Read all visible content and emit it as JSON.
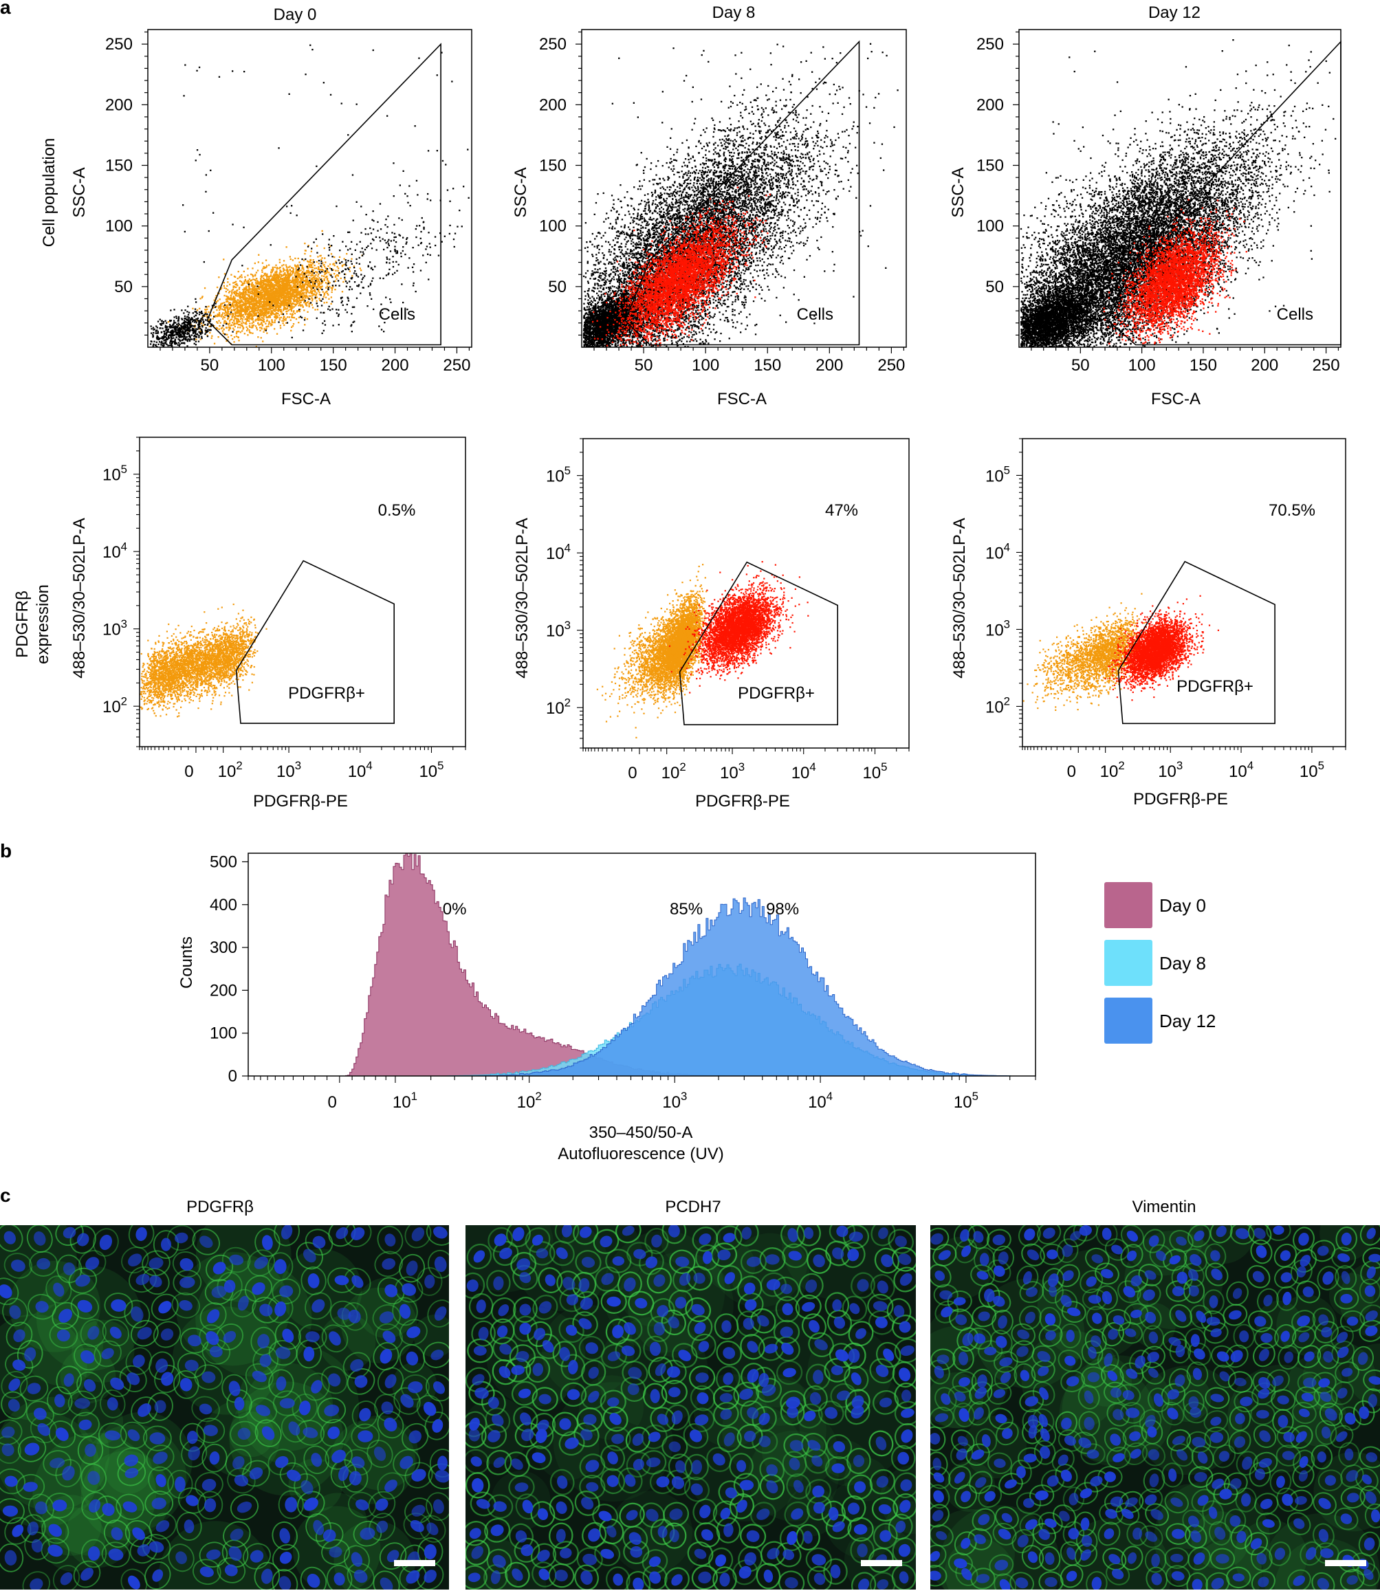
{
  "figure": {
    "panel_labels": [
      "a",
      "b",
      "c"
    ],
    "colors": {
      "black": "#000000",
      "orange": "#f39a0c",
      "red": "#ff1500",
      "day0": "#b9658d",
      "day8": "#6ee0fb",
      "day12": "#4a92ee",
      "micro_bg": "#0a1810",
      "nucleus": "#1f3fd8",
      "membrane": "#3fd04a"
    }
  },
  "chart_data": [
    {
      "id": "a-day0-scatter",
      "type": "scatter",
      "title": "Day 0",
      "xlabel": "FSC-A",
      "ylabel": "SSC-A",
      "row_label": "Cell population",
      "xlim": [
        0,
        262
      ],
      "ylim": [
        0,
        262
      ],
      "xticks": [
        50,
        100,
        150,
        200,
        250
      ],
      "yticks": [
        50,
        100,
        150,
        200,
        250
      ],
      "gate_label": "Cells",
      "gate": [
        [
          68,
          2
        ],
        [
          48,
          22
        ],
        [
          68,
          72
        ],
        [
          237,
          250
        ],
        [
          237,
          2
        ]
      ],
      "clusters": [
        {
          "color": "orange",
          "count": 3300,
          "cx": 100,
          "cy": 43,
          "sx": 22,
          "sy": 13,
          "rho": 0.55
        },
        {
          "color": "black",
          "count": 650,
          "cx": 25,
          "cy": 14,
          "sx": 13,
          "sy": 8,
          "rho": 0.5
        },
        {
          "color": "black",
          "count": 380,
          "cx": 175,
          "cy": 68,
          "sx": 35,
          "sy": 30,
          "rho": 0.6
        }
      ]
    },
    {
      "id": "a-day8-scatter",
      "type": "scatter",
      "title": "Day 8",
      "xlabel": "FSC-A",
      "ylabel": "SSC-A",
      "xlim": [
        0,
        262
      ],
      "ylim": [
        0,
        262
      ],
      "xticks": [
        50,
        100,
        150,
        200,
        250
      ],
      "yticks": [
        50,
        100,
        150,
        200,
        250
      ],
      "gate_label": "Cells",
      "gate": [
        [
          55,
          2
        ],
        [
          35,
          22
        ],
        [
          55,
          72
        ],
        [
          224,
          252
        ],
        [
          224,
          2
        ]
      ],
      "clusters": [
        {
          "color": "black",
          "count": 9500,
          "cx": 85,
          "cy": 78,
          "sx": 48,
          "sy": 52,
          "rho": 0.7
        },
        {
          "color": "black",
          "count": 2600,
          "cx": 20,
          "cy": 20,
          "sx": 14,
          "sy": 12,
          "rho": 0.5
        },
        {
          "color": "red",
          "count": 4300,
          "cx": 78,
          "cy": 56,
          "sx": 22,
          "sy": 22,
          "rho": 0.65
        }
      ]
    },
    {
      "id": "a-day12-scatter",
      "type": "scatter",
      "title": "Day 12",
      "xlabel": "FSC-A",
      "ylabel": "SSC-A",
      "xlim": [
        0,
        262
      ],
      "ylim": [
        0,
        262
      ],
      "xticks": [
        50,
        100,
        150,
        200,
        250
      ],
      "yticks": [
        50,
        100,
        150,
        200,
        250
      ],
      "gate_label": "Cells",
      "gate": [
        [
          95,
          2
        ],
        [
          72,
          22
        ],
        [
          95,
          72
        ],
        [
          262,
          252
        ],
        [
          262,
          2
        ]
      ],
      "clusters": [
        {
          "color": "black",
          "count": 12500,
          "cx": 88,
          "cy": 72,
          "sx": 52,
          "sy": 48,
          "rho": 0.7
        },
        {
          "color": "black",
          "count": 3000,
          "cx": 25,
          "cy": 22,
          "sx": 16,
          "sy": 13,
          "rho": 0.5
        },
        {
          "color": "red",
          "count": 3800,
          "cx": 125,
          "cy": 55,
          "sx": 18,
          "sy": 20,
          "rho": 0.5
        }
      ]
    },
    {
      "id": "a-day0-pdgfrb",
      "type": "scatter",
      "xlabel": "PDGFRβ-PE",
      "ylabel": "488–530/30–502LP-A",
      "row_label": "PDGFRβ expression",
      "x_scale": "biexponential",
      "y_scale": "log",
      "xlim": [
        -300,
        300000
      ],
      "ylim": [
        30,
        300000
      ],
      "percent_label": "0.5%",
      "gate_label": "PDGFRβ+",
      "gate": [
        [
          200,
          60
        ],
        [
          170,
          290
        ],
        [
          1600,
          7600
        ],
        [
          30000,
          2100
        ],
        [
          30000,
          60
        ]
      ],
      "clusters": [
        {
          "color": "orange",
          "count": 3800,
          "cx": 0,
          "cy": 350,
          "sx": 90,
          "sy": 0.22,
          "rho": 0.55
        }
      ]
    },
    {
      "id": "a-day8-pdgfrb",
      "type": "scatter",
      "xlabel": "PDGFRβ-PE",
      "ylabel": "488–530/30–502LP-A",
      "x_scale": "biexponential",
      "y_scale": "log",
      "xlim": [
        -300,
        300000
      ],
      "ylim": [
        30,
        300000
      ],
      "percent_label": "47%",
      "gate_label": "PDGFRβ+",
      "gate": [
        [
          200,
          60
        ],
        [
          170,
          290
        ],
        [
          1600,
          7600
        ],
        [
          30000,
          2100
        ],
        [
          30000,
          60
        ]
      ],
      "clusters": [
        {
          "color": "orange",
          "count": 5000,
          "cx": 150,
          "cy": 600,
          "sx": 60,
          "sy": 0.28,
          "rho": 0.55
        },
        {
          "color": "red",
          "count": 4500,
          "cx": 1200,
          "cy": 1100,
          "sx": 0.25,
          "sy": 0.22,
          "rho": 0.45
        }
      ]
    },
    {
      "id": "a-day12-pdgfrb",
      "type": "scatter",
      "xlabel": "PDGFRβ-PE",
      "ylabel": "488–530/30–502LP-A",
      "x_scale": "biexponential",
      "y_scale": "log",
      "xlim": [
        -300,
        300000
      ],
      "ylim": [
        30,
        300000
      ],
      "percent_label": "70.5%",
      "gate_label": "PDGFRβ+",
      "gate": [
        [
          200,
          60
        ],
        [
          170,
          290
        ],
        [
          1600,
          7600
        ],
        [
          30000,
          2100
        ],
        [
          30000,
          60
        ]
      ],
      "clusters": [
        {
          "color": "orange",
          "count": 2200,
          "cx": 80,
          "cy": 450,
          "sx": 70,
          "sy": 0.22,
          "rho": 0.5
        },
        {
          "color": "red",
          "count": 4200,
          "cx": 600,
          "cy": 550,
          "sx": 0.22,
          "sy": 0.18,
          "rho": 0.4
        }
      ]
    },
    {
      "id": "b-histogram",
      "type": "area",
      "xlabel": "350–450/50-A",
      "xlabel2": "Autofluorescence (UV)",
      "ylabel": "Counts",
      "x_scale": "biexponential",
      "xlim": [
        -20,
        300000
      ],
      "ylim": [
        0,
        520
      ],
      "yticks": [
        0,
        100,
        200,
        300,
        400,
        500
      ],
      "percent_labels": [
        {
          "text": "0%",
          "x": 30,
          "y": 390
        },
        {
          "text": "85%",
          "x": 1200,
          "y": 390
        },
        {
          "text": "98%",
          "x": 5500,
          "y": 390
        }
      ],
      "series": [
        {
          "name": "Day 0",
          "color": "day0",
          "peaks": [
            [
              13,
              0.3,
              495
            ],
            [
              80,
              0.45,
              95
            ]
          ]
        },
        {
          "name": "Day 8",
          "color": "day8",
          "peaks": [
            [
              2300,
              0.55,
              250
            ]
          ]
        },
        {
          "name": "Day 12",
          "color": "day12",
          "peaks": [
            [
              2900,
              0.5,
              400
            ]
          ]
        }
      ]
    }
  ],
  "microscopy": [
    {
      "label": "PDGFRβ",
      "seed": 11,
      "nuclei": 260,
      "mem": 0.55,
      "glow": 0.5
    },
    {
      "label": "PCDH7",
      "seed": 29,
      "nuclei": 320,
      "mem": 0.8,
      "glow": 0.1
    },
    {
      "label": "Vimentin",
      "seed": 47,
      "nuclei": 360,
      "mem": 0.65,
      "glow": 0.35
    }
  ]
}
